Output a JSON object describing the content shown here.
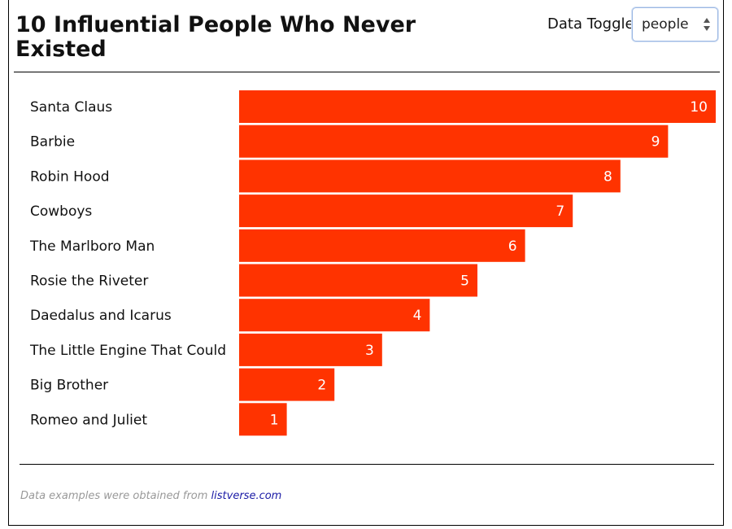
{
  "header": {
    "title": "10 Influential People Who Never Existed",
    "toggle_label": "Data Toggle",
    "toggle_value": "people"
  },
  "footer": {
    "prefix": "Data examples were obtained from ",
    "link_text": "listverse.com"
  },
  "colors": {
    "bar": "#ff3300",
    "value_text": "#ffffff",
    "label_text": "#111111"
  },
  "chart_data": {
    "type": "bar",
    "orientation": "horizontal",
    "title": "10 Influential People Who Never Existed",
    "categories": [
      "Santa Claus",
      "Barbie",
      "Robin Hood",
      "Cowboys",
      "The Marlboro Man",
      "Rosie the Riveter",
      "Daedalus and Icarus",
      "The Little Engine That Could",
      "Big Brother",
      "Romeo and Juliet"
    ],
    "values": [
      10,
      9,
      8,
      7,
      6,
      5,
      4,
      3,
      2,
      1
    ],
    "data_labels": true,
    "xlim": [
      0,
      10
    ],
    "grid": false,
    "legend": "none"
  }
}
